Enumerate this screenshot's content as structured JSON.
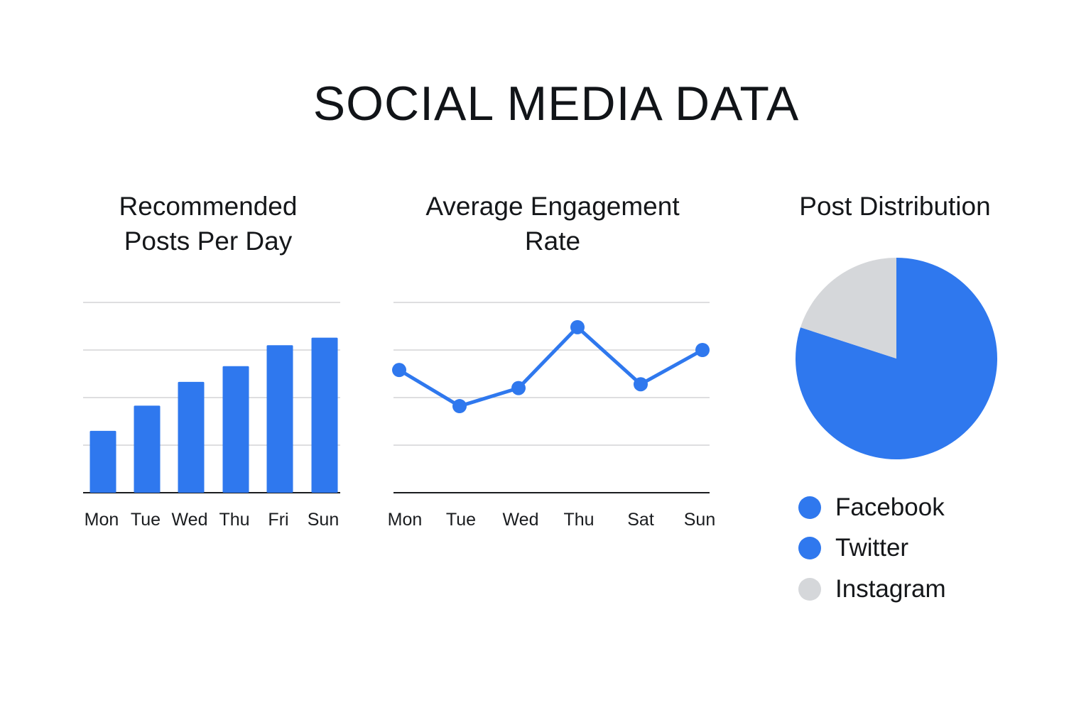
{
  "title": "SOCIAL MEDIA DATA",
  "chart_data": [
    {
      "type": "bar",
      "title": "Recommended\nPosts Per Day",
      "categories": [
        "Mon",
        "Tue",
        "Wed",
        "Thu",
        "Fri",
        "Sun"
      ],
      "values": [
        1.3,
        1.83,
        2.33,
        2.66,
        3.1,
        3.26
      ],
      "ylim": [
        0,
        4
      ],
      "grid": true,
      "color": "#2f78ee"
    },
    {
      "type": "line",
      "title": "Average Engagement\nRate",
      "categories": [
        "Mon",
        "Tue",
        "Wed",
        "Thu",
        "Sat",
        "Sun"
      ],
      "values": [
        2.58,
        1.82,
        2.2,
        3.48,
        2.28,
        3.0
      ],
      "ylim": [
        0,
        4
      ],
      "grid": true,
      "color": "#2f78ee"
    },
    {
      "type": "pie",
      "title": "Post Distribution",
      "slices": [
        {
          "label": "Facebook",
          "value": 80,
          "color": "#2f78ee"
        },
        {
          "label": "Twitter",
          "value": 0,
          "color": "#2f78ee"
        },
        {
          "label": "Instagram",
          "value": 20,
          "color": "#d5d7da"
        }
      ],
      "legend": [
        "Facebook",
        "Twitter",
        "Instagram"
      ]
    }
  ]
}
